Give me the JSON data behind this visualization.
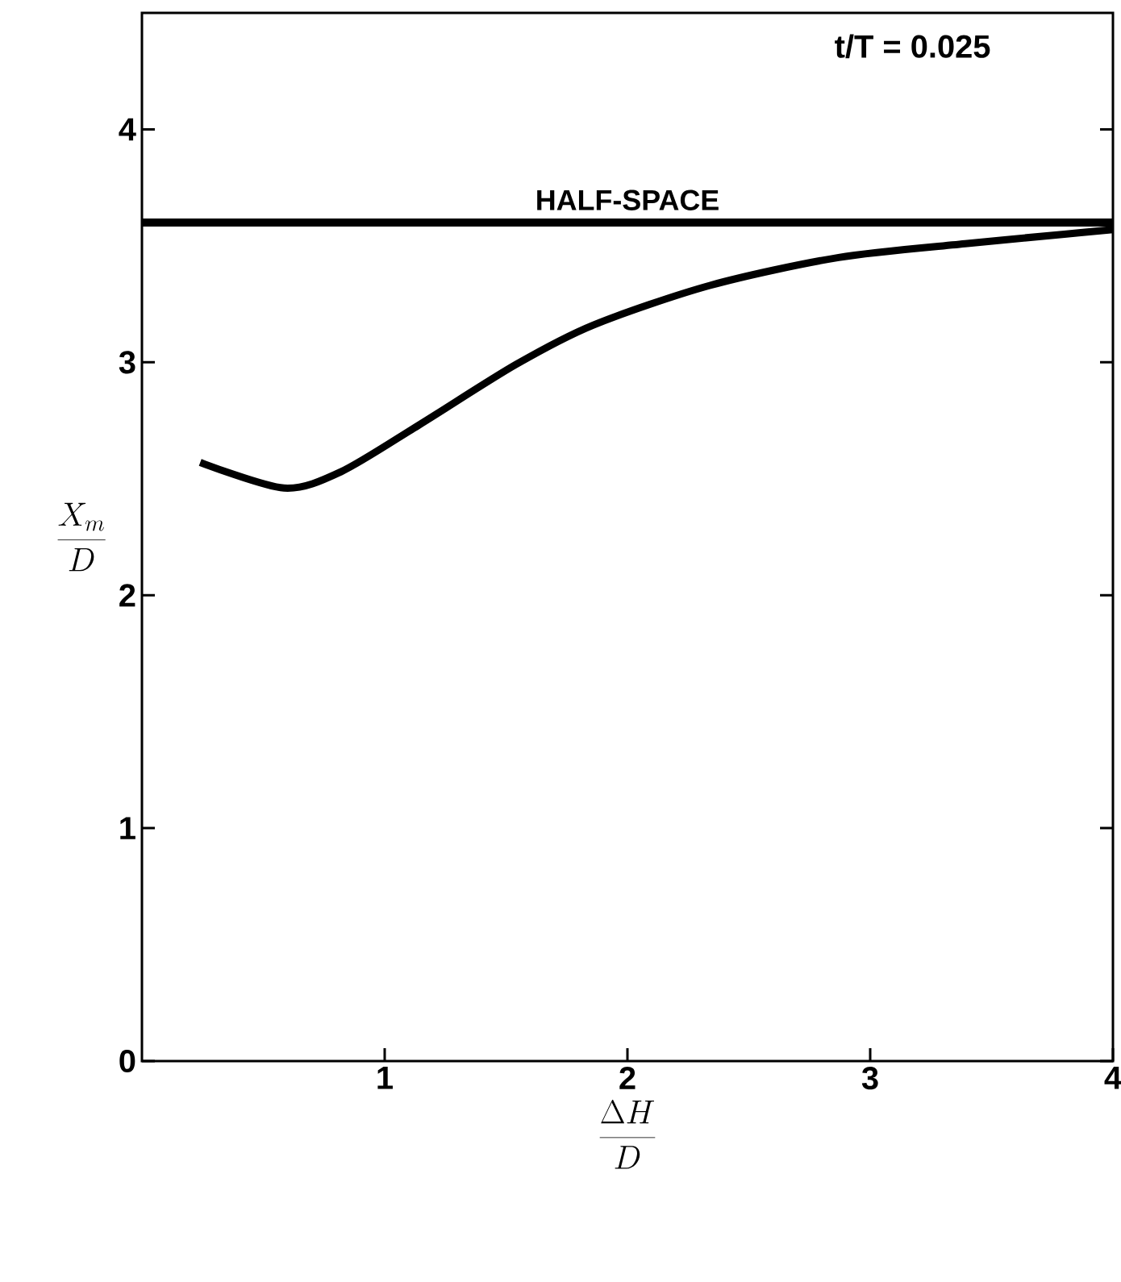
{
  "chart_data": {
    "type": "line",
    "xlabel": "\\frac{\\Delta H}{D}",
    "ylabel": "\\frac{X_m}{D}",
    "annotations": [
      "t/T = 0.025"
    ],
    "x": [
      0.24,
      0.585,
      0.82,
      1.14,
      1.54,
      1.86,
      2.34,
      2.87,
      3.4,
      3.8,
      4.0
    ],
    "values": [
      2.57,
      2.46,
      2.53,
      2.73,
      2.99,
      3.16,
      3.33,
      3.45,
      3.51,
      3.55,
      3.57
    ],
    "color": "#000000",
    "xlim": [
      0,
      4
    ],
    "ylim": [
      0,
      4.5
    ],
    "xticks": [
      1,
      2,
      3,
      4
    ],
    "yticks": [
      0,
      1,
      2,
      3,
      4
    ],
    "ref_lines": [
      {
        "axis": "y",
        "value": 3.6,
        "label": "HALF-SPACE",
        "color": "#000000"
      }
    ],
    "grid": false,
    "marker": "none",
    "line_style": "solid"
  }
}
